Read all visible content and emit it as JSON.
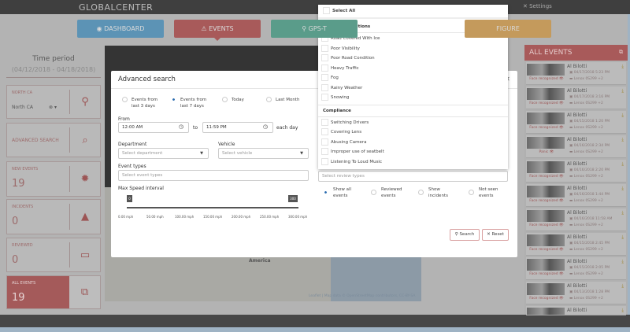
{
  "header": {
    "logo": "GLOBALCENTER",
    "settings": "Settings"
  },
  "nav": [
    {
      "label": "DASHBOARD",
      "color": "#5c93b5"
    },
    {
      "label": "EVENTS",
      "color": "#a85a5a"
    },
    {
      "label": "GPS-T",
      "color": "#5a9c8a"
    },
    {
      "label": "FIGURE",
      "color": "#c49a5c"
    }
  ],
  "sidebar": {
    "time_period": "Time period",
    "date_range": "(04/12/2018 - 04/18/2018)",
    "cards": [
      {
        "label": "NORTH CA",
        "value": "North CA",
        "icon": "map-pin-icon"
      },
      {
        "label": "ADVANCED SEARCH",
        "icon": "search-icon"
      },
      {
        "label": "NEW EVENTS",
        "value": "19",
        "icon": "alert-badge-icon"
      },
      {
        "label": "INCIDENTS",
        "value": "0",
        "icon": "warning-icon"
      },
      {
        "label": "REVIEWED",
        "value": "0",
        "icon": "monitor-icon"
      },
      {
        "label": "ALL EVENTS",
        "value": "19",
        "icon": "folders-icon"
      }
    ]
  },
  "map": {
    "label": "America",
    "attribution": "Leaflet | Map data © OpenStreetMap contributors, CC-BY-SA"
  },
  "events_panel": {
    "title": "ALL EVENTS",
    "items": [
      {
        "name": "Al Bilotti",
        "date": "04/17/2018 5:23 PM",
        "vehicle": "Lenox 0S299 +2",
        "tag": "Face recognized"
      },
      {
        "name": "Al Bilotti",
        "date": "04/17/2018 3:16 PM",
        "vehicle": "Lenox 0S299 +2",
        "tag": "Face recognized"
      },
      {
        "name": "Al Bilotti",
        "date": "04/15/2018 1:20 PM",
        "vehicle": "Lenox 0S299 +2",
        "tag": "Face recognized"
      },
      {
        "name": "Al Bilotti",
        "date": "04/16/2018 2:34 PM",
        "vehicle": "Lenox 0S299 +2",
        "tag": "Panic"
      },
      {
        "name": "Al Bilotti",
        "date": "04/16/2018 2:20 PM",
        "vehicle": "Lenox 0S299 +2",
        "tag": "Face recognized"
      },
      {
        "name": "Al Bilotti",
        "date": "04/16/2018 1:44 PM",
        "vehicle": "Lenox 0S299 +2",
        "tag": "Face recognized"
      },
      {
        "name": "Al Bilotti",
        "date": "04/16/2018 11:58 AM",
        "vehicle": "Lenox 0S299 +2",
        "tag": "Face recognized"
      },
      {
        "name": "Al Bilotti",
        "date": "04/15/2018 2:45 PM",
        "vehicle": "Lenox 0S299 +2",
        "tag": "Face recognized"
      },
      {
        "name": "Al Bilotti",
        "date": "04/15/2018 2:05 PM",
        "vehicle": "Lenox 0S299 +2",
        "tag": "Face recognized"
      },
      {
        "name": "Al Bilotti",
        "date": "04/13/2018 1:28 PM",
        "vehicle": "Lenox 0S299 +2",
        "tag": "Face recognized"
      },
      {
        "name": "Al Bilotti",
        "date": "",
        "vehicle": "",
        "tag": ""
      }
    ]
  },
  "modal": {
    "title": "Advanced search",
    "periods": [
      {
        "label": "Events from last 3 days",
        "selected": false
      },
      {
        "label": "Events from last 7 days",
        "selected": true
      },
      {
        "label": "Today",
        "selected": false
      },
      {
        "label": "Last Month",
        "selected": false
      }
    ],
    "from_label": "From",
    "from_value": "12:00 AM",
    "to_label": "to",
    "to_value": "11:59 PM",
    "each_day": "each day",
    "department_label": "Department",
    "department_placeholder": "Select department",
    "vehicle_label": "Vehicle",
    "vehicle_placeholder": "Select vehicle",
    "event_types_label": "Event types",
    "event_types_placeholder": "Select event types",
    "speed_label": "Max Speed interval",
    "speed_min": "0",
    "speed_max": "300",
    "speed_ticks": [
      "0.00 mph",
      "50.00 mph",
      "100.00 mph",
      "150.00 mph",
      "200.00 mph",
      "250.00 mph",
      "300.00 mph"
    ],
    "review_placeholder": "Select review types",
    "show": [
      {
        "label": "Show all events",
        "selected": true
      },
      {
        "label": "Reviewed events",
        "selected": false
      },
      {
        "label": "Show incidents",
        "selected": false
      },
      {
        "label": "Not seen events",
        "selected": false
      }
    ],
    "search": "Search",
    "reset": "Reset"
  },
  "dropdown": {
    "select_all": "Select All",
    "groups": [
      {
        "title": "Adverse Conditions",
        "items": [
          "Road Covered With Ice",
          "Poor Visibility",
          "Poor Road Condition",
          "Heavy Traffic",
          "Fog",
          "Rainy Weather",
          "Snowing"
        ]
      },
      {
        "title": "Compliance",
        "items": [
          "Switching Drivers",
          "Covering Lens",
          "Abusing Camera",
          "Improper use of seatbelt",
          "Listening To Loud Music"
        ]
      }
    ]
  }
}
